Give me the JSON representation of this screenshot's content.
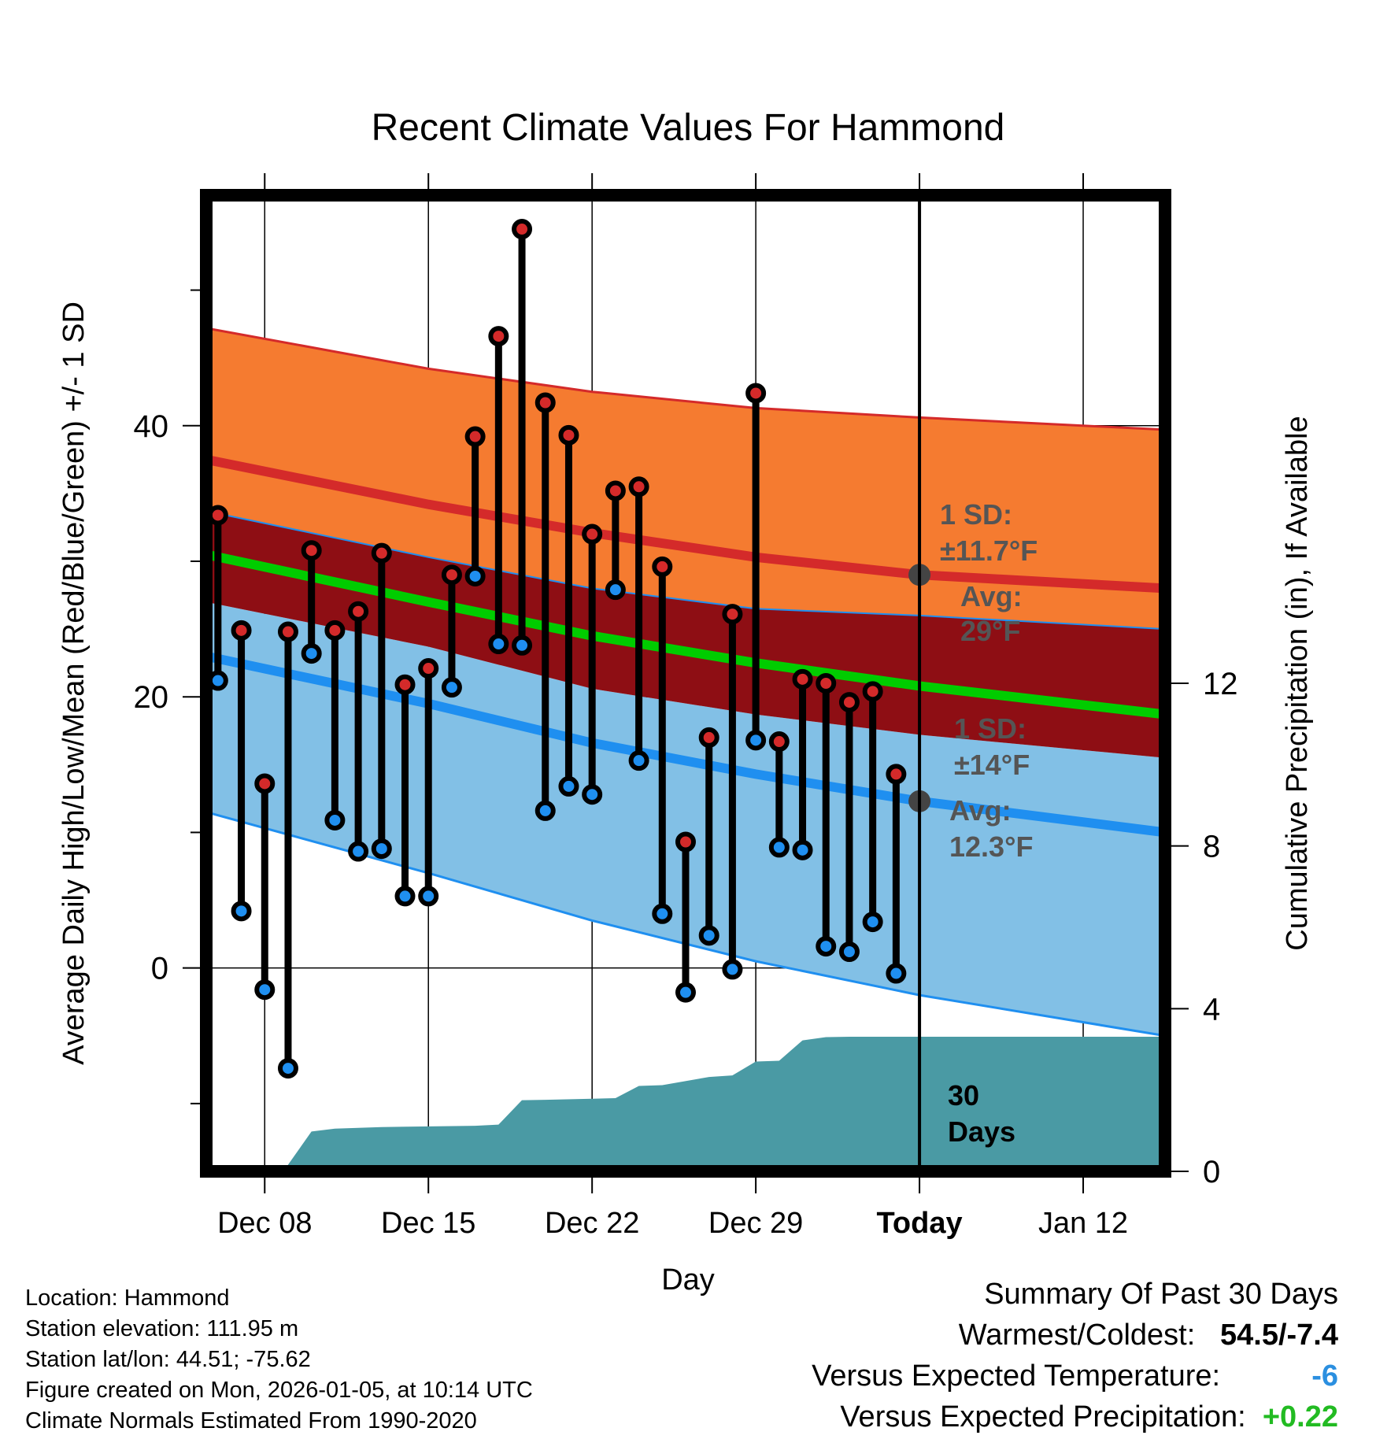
{
  "chart_data": {
    "type": "line",
    "title": "Recent Climate Values For Hammond",
    "xlabel": "Day",
    "ylabel": "Average Daily High/Low/Mean (Red/Blue/Green) +/- 1 SD",
    "y2label": "Cumulative Precipitation (in), If Available",
    "xlim": [
      -2.5,
      38.5
    ],
    "ylim": [
      -15,
      57
    ],
    "y2lim": [
      0,
      24
    ],
    "x_ticks": [
      {
        "x": 0,
        "label": "Dec 08"
      },
      {
        "x": 7,
        "label": "Dec 15"
      },
      {
        "x": 14,
        "label": "Dec 22"
      },
      {
        "x": 21,
        "label": "Dec 29"
      },
      {
        "x": 28,
        "label": "Today"
      },
      {
        "x": 35,
        "label": "Jan 12"
      }
    ],
    "y_ticks": [
      0,
      20,
      40
    ],
    "y2_ticks": [
      0,
      4,
      8,
      12
    ],
    "grid": true,
    "normal_bands": {
      "x": [
        -2.5,
        7,
        14,
        21,
        28,
        38.5
      ],
      "high_mean": [
        37.5,
        34.2,
        32.1,
        30.3,
        29.0,
        28.0
      ],
      "high_upper": [
        47.2,
        44.2,
        42.5,
        41.3,
        40.6,
        39.7
      ],
      "high_lower": [
        33.7,
        30.3,
        28.0,
        26.5,
        26.0,
        25.0
      ],
      "mean": [
        30.5,
        27.0,
        24.5,
        22.5,
        20.8,
        18.7
      ],
      "low_mean": [
        23.0,
        19.5,
        16.6,
        14.3,
        12.3,
        10.0
      ],
      "low_upper": [
        27.0,
        23.7,
        20.6,
        18.7,
        17.2,
        15.5
      ],
      "low_lower": [
        11.5,
        7.0,
        3.5,
        0.5,
        -2.0,
        -5.0
      ]
    },
    "series": [
      {
        "name": "Daily High",
        "color": "#cc2222",
        "values": [
          33.4,
          24.9,
          13.6,
          24.8,
          30.8,
          24.9,
          26.3,
          30.6,
          20.9,
          22.1,
          29.0,
          39.2,
          46.6,
          54.5,
          41.7,
          39.3,
          32.0,
          35.2,
          35.5,
          29.6,
          9.3,
          17.0,
          26.1,
          42.4,
          16.7,
          21.3,
          21.0,
          19.6,
          20.4,
          14.3
        ]
      },
      {
        "name": "Daily Low",
        "color": "#2b8fe0",
        "values": [
          21.2,
          4.2,
          -1.6,
          -7.4,
          23.2,
          10.9,
          8.6,
          8.8,
          5.3,
          5.3,
          20.7,
          28.9,
          23.9,
          23.8,
          11.6,
          13.4,
          12.8,
          27.9,
          15.3,
          4.0,
          -1.8,
          2.4,
          -0.1,
          16.8,
          8.9,
          8.7,
          1.6,
          1.2,
          3.4,
          -0.4
        ]
      }
    ],
    "day_x_start": -2,
    "precip": {
      "name": "Cumulative Precipitation",
      "color": "#4a9aa4",
      "x": [
        -2.5,
        0.8,
        2,
        3,
        5,
        9,
        10,
        11,
        12,
        15,
        16,
        17,
        19,
        20,
        21,
        22,
        23,
        24,
        25,
        28,
        38.5
      ],
      "values": [
        0,
        0,
        0.98,
        1.05,
        1.09,
        1.12,
        1.15,
        1.75,
        1.76,
        1.8,
        2.1,
        2.12,
        2.32,
        2.36,
        2.7,
        2.72,
        3.22,
        3.3,
        3.31,
        3.31,
        3.31
      ]
    },
    "annotations": [
      {
        "id": "high",
        "lines": [
          "1 SD:",
          "±11.7°F",
          "Avg:",
          "29°F"
        ],
        "color": "#555555"
      },
      {
        "id": "low",
        "lines": [
          "1 SD:",
          "±14°F",
          "Avg:",
          "12.3°F"
        ],
        "color": "#555555"
      },
      {
        "id": "days",
        "lines": [
          "30",
          "Days"
        ],
        "color": "#000000"
      }
    ],
    "colors": {
      "high_band": "#f57b30",
      "high_line": "#d42a2a",
      "overlap_band": "#8e0e14",
      "mean_line": "#00cc00",
      "low_band": "#82c0e6",
      "low_line": "#1f8ff0",
      "precip": "#4a9aa4",
      "high_marker": "#d42a2a",
      "low_marker": "#1f8ff0",
      "avg_dot": "#444444"
    }
  },
  "info": {
    "location": "Location: Hammond",
    "elevation": "Station elevation: 111.95 m",
    "latlon": "Station lat/lon: 44.51; -75.62",
    "created": "Figure created on Mon, 2026-01-05, at 10:14 UTC",
    "normals": "Climate Normals Estimated From 1990-2020"
  },
  "summary": {
    "title": "Summary Of Past 30 Days",
    "warm_cold_label": "Warmest/Coldest:",
    "warm_cold_value": "54.5/-7.4",
    "temp_label": "Versus Expected Temperature:",
    "temp_value": "-6",
    "temp_color": "#2b8fe0",
    "precip_label": "Versus Expected Precipitation:",
    "precip_value": "+0.22",
    "precip_color": "#22bb22"
  }
}
